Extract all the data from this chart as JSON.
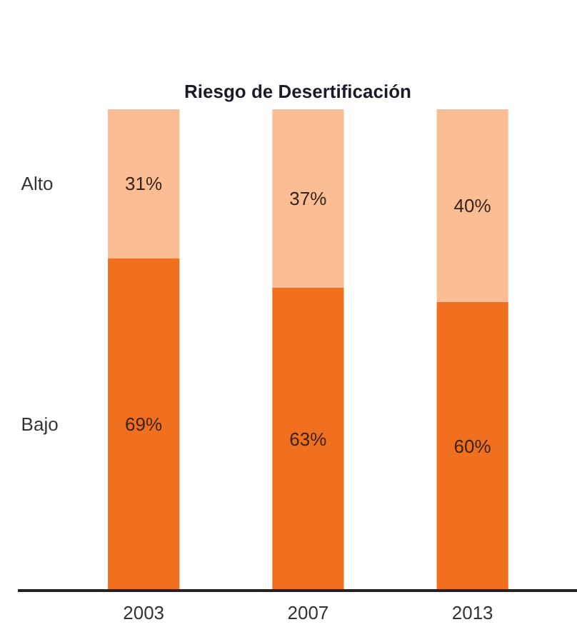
{
  "chart_data": {
    "type": "bar",
    "title": "Riesgo de Desertificación",
    "stacked": true,
    "categories": [
      "2003",
      "2007",
      "2013"
    ],
    "series": [
      {
        "name": "Bajo",
        "color": "#f07020",
        "values": [
          69,
          63,
          60
        ],
        "value_labels": [
          "69%",
          "63%",
          "60%"
        ]
      },
      {
        "name": "Alto",
        "color": "#fbbd94",
        "values": [
          31,
          37,
          40
        ],
        "value_labels": [
          "31%",
          "37%",
          "40%"
        ]
      }
    ]
  }
}
